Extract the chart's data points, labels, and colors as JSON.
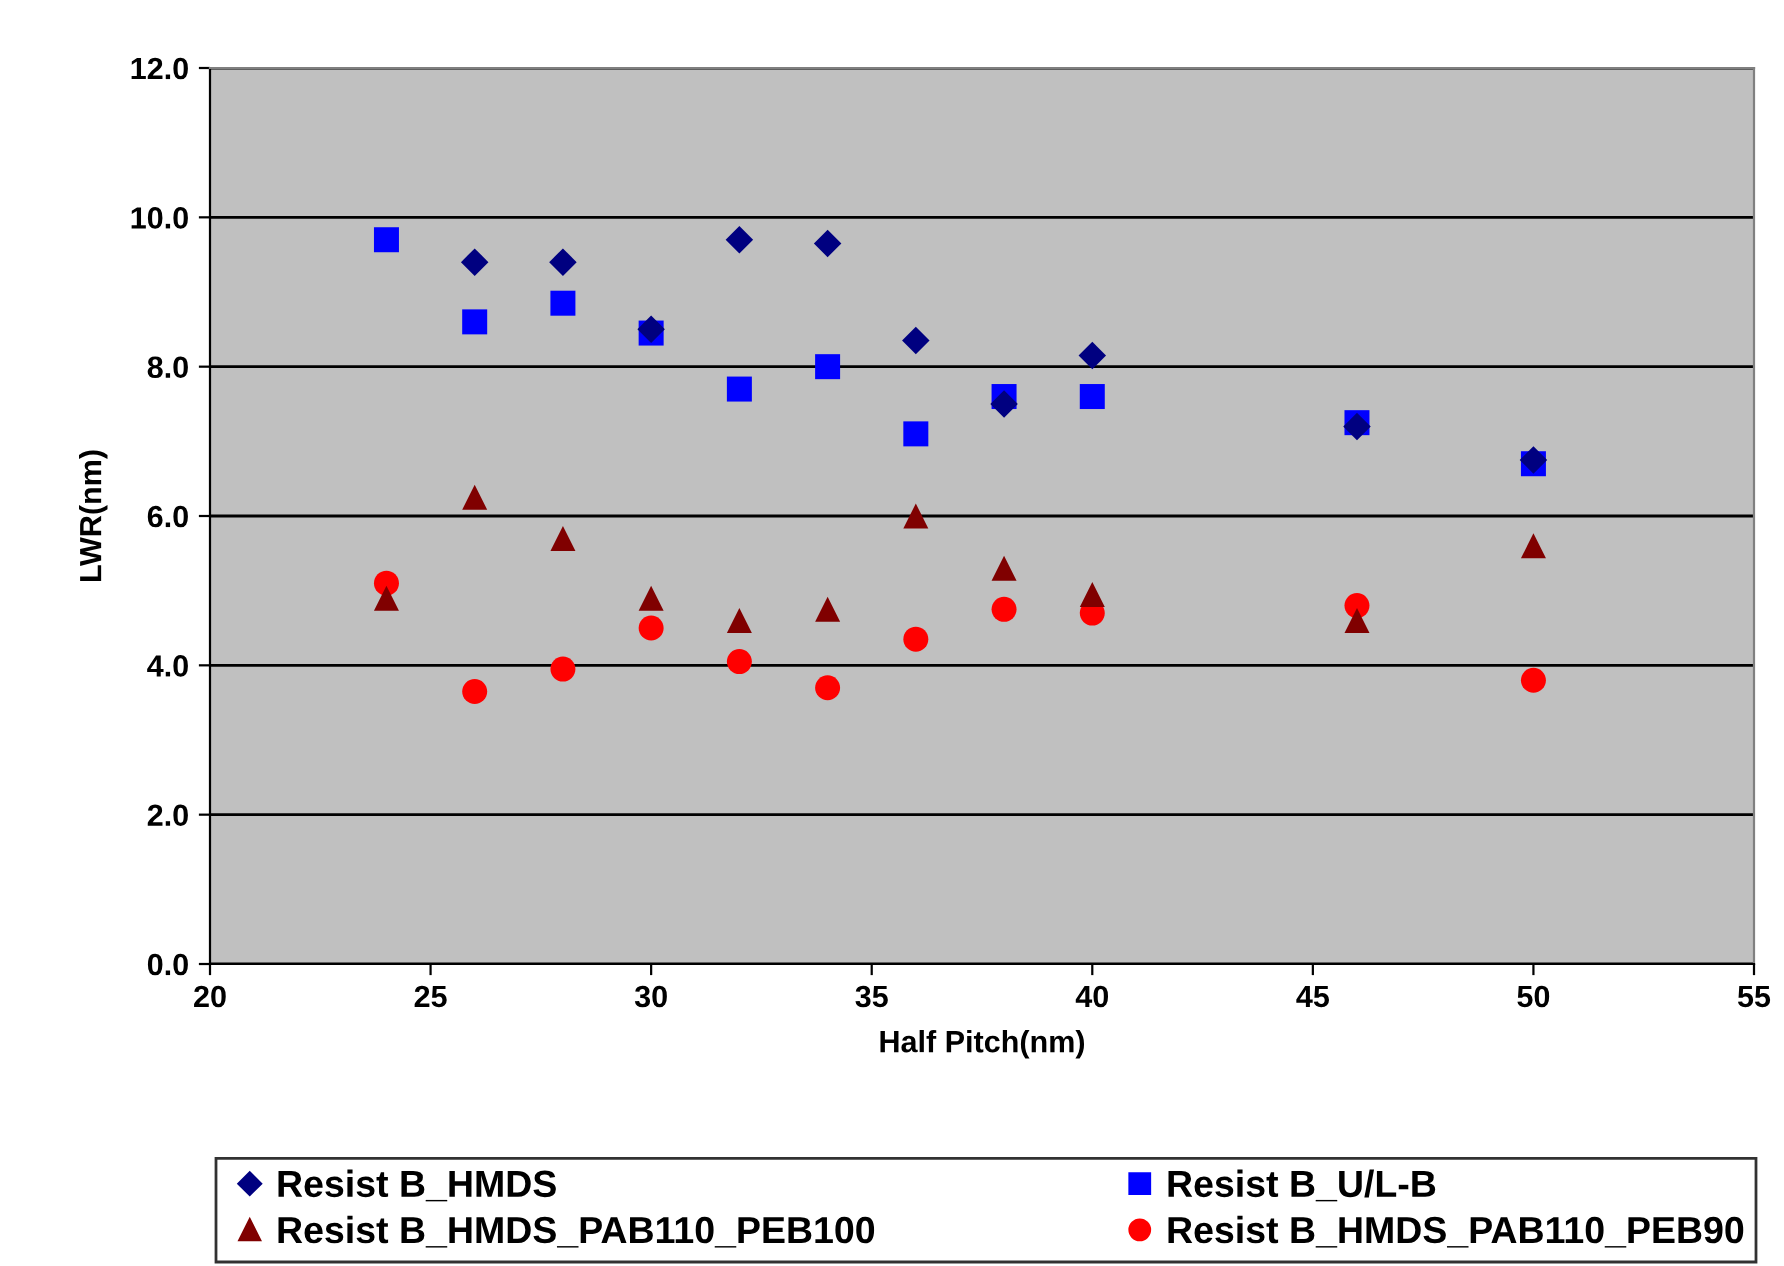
{
  "chart_data": {
    "type": "scatter",
    "xlabel": "Half Pitch(nm)",
    "ylabel": "LWR(nm)",
    "xlim": [
      20,
      55
    ],
    "xticks": [
      20,
      25,
      30,
      35,
      40,
      45,
      50,
      55
    ],
    "ylim": [
      0,
      12
    ],
    "yticks": [
      {
        "value": 0,
        "label": "0.0"
      },
      {
        "value": 2,
        "label": "2.0"
      },
      {
        "value": 4,
        "label": "4.0"
      },
      {
        "value": 6,
        "label": "6.0"
      },
      {
        "value": 8,
        "label": "8.0"
      },
      {
        "value": 10,
        "label": "10.0"
      },
      {
        "value": 12,
        "label": "12.0"
      }
    ],
    "grid": "y",
    "legend": "bottom",
    "x": [
      24,
      26,
      28,
      30,
      32,
      34,
      36,
      38,
      40,
      46,
      50
    ],
    "series": [
      {
        "name": "Resist B_HMDS",
        "color": "#000080",
        "marker": "diamond",
        "x": [
          26,
          28,
          30,
          32,
          34,
          36,
          38,
          40,
          46,
          50
        ],
        "values": [
          9.4,
          9.4,
          8.5,
          9.7,
          9.65,
          8.35,
          7.5,
          8.15,
          7.2,
          6.75
        ]
      },
      {
        "name": "Resist B_U/L-B",
        "color": "#0000ff",
        "marker": "square",
        "values": [
          9.7,
          8.6,
          8.85,
          8.45,
          7.7,
          8.0,
          7.1,
          7.6,
          7.6,
          7.25,
          6.7
        ]
      },
      {
        "name": "Resist B_HMDS_PAB110_PEB100",
        "color": "#800000",
        "marker": "triangle",
        "values": [
          4.9,
          6.25,
          5.7,
          4.9,
          4.6,
          4.75,
          6.0,
          5.3,
          4.95,
          4.6,
          5.6
        ]
      },
      {
        "name": "Resist B_HMDS_PAB110_PEB90",
        "color": "#ff0000",
        "marker": "circle",
        "values": [
          5.1,
          3.65,
          3.95,
          4.5,
          4.05,
          3.7,
          4.35,
          4.75,
          4.7,
          4.8,
          3.8
        ]
      }
    ]
  }
}
